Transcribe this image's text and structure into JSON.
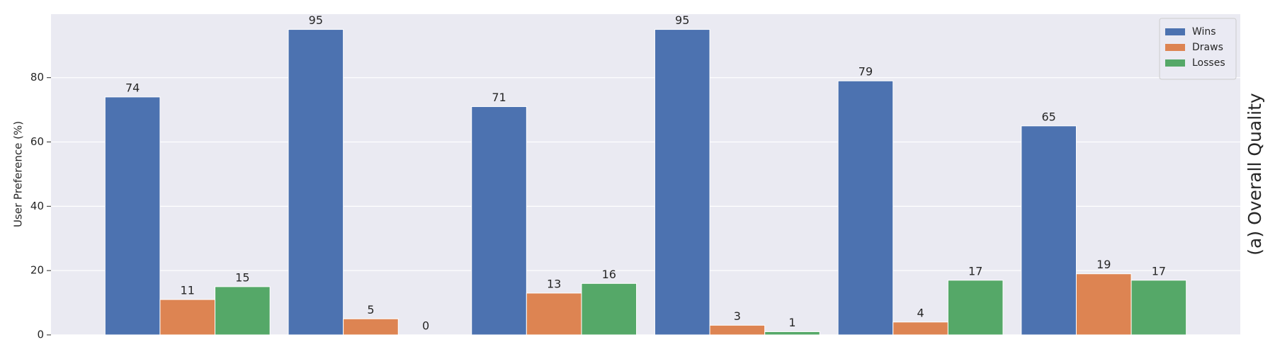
{
  "chart_data": {
    "type": "bar",
    "y_label": "User Preference (%)",
    "side_title": "(a) Overall Quality",
    "categories": [
      null,
      null,
      null,
      null,
      null,
      null
    ],
    "series": [
      {
        "name": "Wins",
        "color": "#4c72b0",
        "values": [
          74,
          95,
          71,
          95,
          79,
          65
        ]
      },
      {
        "name": "Draws",
        "color": "#dd8452",
        "values": [
          11,
          5,
          13,
          3,
          4,
          19
        ]
      },
      {
        "name": "Losses",
        "color": "#55a868",
        "values": [
          15,
          0,
          16,
          1,
          17,
          17
        ]
      }
    ],
    "ylim": [
      0,
      99.75
    ],
    "yticks": [
      0,
      20,
      40,
      60,
      80
    ],
    "grid": true,
    "legend": "upper right"
  }
}
